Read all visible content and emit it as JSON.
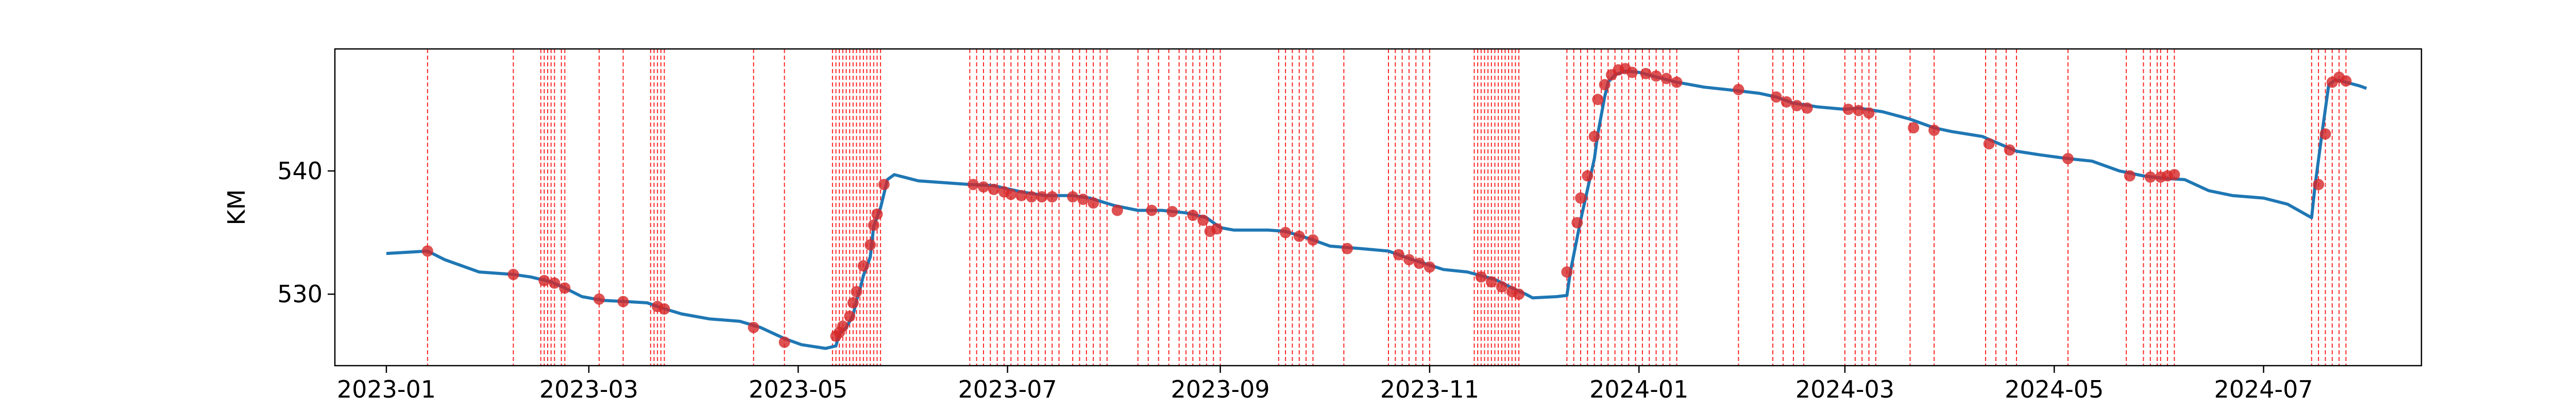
{
  "chart_data": {
    "type": "line",
    "title": "",
    "xlabel": "",
    "ylabel": "KM",
    "x_is_date": true,
    "xlim": [
      "2022-12-17",
      "2024-08-16"
    ],
    "ylim": [
      524.2,
      549.9
    ],
    "x_ticks": [
      "2023-01",
      "2023-03",
      "2023-05",
      "2023-07",
      "2023-09",
      "2023-11",
      "2024-01",
      "2024-03",
      "2024-05",
      "2024-07"
    ],
    "y_ticks": [
      530,
      540
    ],
    "grid": false,
    "legend": "none",
    "colors": {
      "line": "#1f77b4",
      "marker": "#d62728",
      "vline": "#ff0000"
    },
    "series": [
      {
        "type": "line",
        "points": [
          [
            "2023-01-01",
            533.3
          ],
          [
            "2023-01-13",
            533.5
          ],
          [
            "2023-01-18",
            532.8
          ],
          [
            "2023-01-28",
            531.8
          ],
          [
            "2023-02-07",
            531.6
          ],
          [
            "2023-02-12",
            531.4
          ],
          [
            "2023-02-18",
            531.0
          ],
          [
            "2023-02-22",
            530.5
          ],
          [
            "2023-02-27",
            529.8
          ],
          [
            "2023-03-05",
            529.5
          ],
          [
            "2023-03-12",
            529.4
          ],
          [
            "2023-03-18",
            529.3
          ],
          [
            "2023-03-22",
            528.9
          ],
          [
            "2023-03-28",
            528.4
          ],
          [
            "2023-04-05",
            528.0
          ],
          [
            "2023-04-14",
            527.8
          ],
          [
            "2023-04-20",
            527.3
          ],
          [
            "2023-04-27",
            526.4
          ],
          [
            "2023-05-02",
            525.9
          ],
          [
            "2023-05-09",
            525.6
          ],
          [
            "2023-05-12",
            525.8
          ],
          [
            "2023-05-13",
            526.8
          ],
          [
            "2023-05-15",
            527.3
          ],
          [
            "2023-05-17",
            528.3
          ],
          [
            "2023-05-18",
            529.5
          ],
          [
            "2023-05-19",
            530.4
          ],
          [
            "2023-05-20",
            531.5
          ],
          [
            "2023-05-22",
            533.0
          ],
          [
            "2023-05-23",
            535.5
          ],
          [
            "2023-05-25",
            537.0
          ],
          [
            "2023-05-27",
            539.3
          ],
          [
            "2023-05-29",
            539.7
          ],
          [
            "2023-06-05",
            539.2
          ],
          [
            "2023-06-20",
            538.9
          ],
          [
            "2023-06-27",
            538.8
          ],
          [
            "2023-07-05",
            538.3
          ],
          [
            "2023-07-12",
            538.0
          ],
          [
            "2023-07-20",
            538.0
          ],
          [
            "2023-07-25",
            537.8
          ],
          [
            "2023-08-01",
            537.2
          ],
          [
            "2023-08-08",
            536.8
          ],
          [
            "2023-08-15",
            536.8
          ],
          [
            "2023-08-22",
            536.6
          ],
          [
            "2023-08-28",
            536.2
          ],
          [
            "2023-09-01",
            535.4
          ],
          [
            "2023-09-05",
            535.2
          ],
          [
            "2023-09-15",
            535.2
          ],
          [
            "2023-09-20",
            535.1
          ],
          [
            "2023-09-27",
            534.5
          ],
          [
            "2023-10-03",
            533.9
          ],
          [
            "2023-10-12",
            533.7
          ],
          [
            "2023-10-20",
            533.5
          ],
          [
            "2023-10-27",
            532.8
          ],
          [
            "2023-11-05",
            532.0
          ],
          [
            "2023-11-12",
            531.8
          ],
          [
            "2023-11-20",
            531.2
          ],
          [
            "2023-11-25",
            530.5
          ],
          [
            "2023-11-29",
            530.0
          ],
          [
            "2023-12-01",
            529.7
          ],
          [
            "2023-12-08",
            529.8
          ],
          [
            "2023-12-11",
            529.9
          ],
          [
            "2023-12-12",
            531.8
          ],
          [
            "2023-12-15",
            536.0
          ],
          [
            "2023-12-17",
            538.5
          ],
          [
            "2023-12-19",
            541.0
          ],
          [
            "2023-12-20",
            543.0
          ],
          [
            "2023-12-22",
            546.0
          ],
          [
            "2023-12-23",
            547.2
          ],
          [
            "2023-12-25",
            547.8
          ],
          [
            "2023-12-28",
            548.1
          ],
          [
            "2024-01-01",
            548.0
          ],
          [
            "2024-01-05",
            547.7
          ],
          [
            "2024-01-12",
            547.2
          ],
          [
            "2024-01-20",
            546.8
          ],
          [
            "2024-01-30",
            546.5
          ],
          [
            "2024-02-05",
            546.3
          ],
          [
            "2024-02-10",
            546.0
          ],
          [
            "2024-02-15",
            545.5
          ],
          [
            "2024-02-22",
            545.2
          ],
          [
            "2024-03-01",
            545.0
          ],
          [
            "2024-03-05",
            545.1
          ],
          [
            "2024-03-12",
            544.8
          ],
          [
            "2024-03-20",
            544.2
          ],
          [
            "2024-03-27",
            543.5
          ],
          [
            "2024-04-01",
            543.2
          ],
          [
            "2024-04-10",
            542.8
          ],
          [
            "2024-04-15",
            542.2
          ],
          [
            "2024-04-20",
            541.6
          ],
          [
            "2024-04-27",
            541.3
          ],
          [
            "2024-05-05",
            541.0
          ],
          [
            "2024-05-12",
            540.8
          ],
          [
            "2024-05-20",
            540.0
          ],
          [
            "2024-05-27",
            539.6
          ],
          [
            "2024-06-02",
            539.4
          ],
          [
            "2024-06-08",
            539.3
          ],
          [
            "2024-06-15",
            538.4
          ],
          [
            "2024-06-22",
            538.0
          ],
          [
            "2024-07-01",
            537.8
          ],
          [
            "2024-07-08",
            537.3
          ],
          [
            "2024-07-15",
            536.2
          ],
          [
            "2024-07-16",
            538.8
          ],
          [
            "2024-07-18",
            543.0
          ],
          [
            "2024-07-20",
            547.0
          ],
          [
            "2024-07-22",
            547.4
          ],
          [
            "2024-07-25",
            547.2
          ],
          [
            "2024-07-29",
            546.9
          ],
          [
            "2024-07-31",
            546.7
          ]
        ]
      },
      {
        "type": "scatter",
        "points": [
          [
            "2023-01-13",
            533.5
          ],
          [
            "2023-02-07",
            531.6
          ],
          [
            "2023-02-16",
            531.1
          ],
          [
            "2023-02-19",
            530.9
          ],
          [
            "2023-02-22",
            530.5
          ],
          [
            "2023-03-04",
            529.6
          ],
          [
            "2023-03-11",
            529.4
          ],
          [
            "2023-03-21",
            529.0
          ],
          [
            "2023-03-23",
            528.8
          ],
          [
            "2023-04-18",
            527.3
          ],
          [
            "2023-04-27",
            526.1
          ],
          [
            "2023-05-12",
            526.6
          ],
          [
            "2023-05-13",
            526.9
          ],
          [
            "2023-05-14",
            527.4
          ],
          [
            "2023-05-16",
            528.2
          ],
          [
            "2023-05-17",
            529.3
          ],
          [
            "2023-05-18",
            530.2
          ],
          [
            "2023-05-20",
            532.3
          ],
          [
            "2023-05-22",
            534.0
          ],
          [
            "2023-05-23",
            535.6
          ],
          [
            "2023-05-24",
            536.5
          ],
          [
            "2023-05-26",
            538.9
          ],
          [
            "2023-06-21",
            538.9
          ],
          [
            "2023-06-24",
            538.7
          ],
          [
            "2023-06-27",
            538.5
          ],
          [
            "2023-06-30",
            538.3
          ],
          [
            "2023-07-02",
            538.1
          ],
          [
            "2023-07-05",
            538.0
          ],
          [
            "2023-07-08",
            537.9
          ],
          [
            "2023-07-11",
            537.9
          ],
          [
            "2023-07-14",
            537.9
          ],
          [
            "2023-07-20",
            537.9
          ],
          [
            "2023-07-23",
            537.7
          ],
          [
            "2023-07-26",
            537.4
          ],
          [
            "2023-08-02",
            536.8
          ],
          [
            "2023-08-12",
            536.8
          ],
          [
            "2023-08-18",
            536.7
          ],
          [
            "2023-08-24",
            536.4
          ],
          [
            "2023-08-27",
            536.0
          ],
          [
            "2023-08-29",
            535.1
          ],
          [
            "2023-08-31",
            535.3
          ],
          [
            "2023-09-20",
            535.0
          ],
          [
            "2023-09-24",
            534.7
          ],
          [
            "2023-09-28",
            534.4
          ],
          [
            "2023-10-08",
            533.7
          ],
          [
            "2023-10-23",
            533.2
          ],
          [
            "2023-10-26",
            532.8
          ],
          [
            "2023-10-29",
            532.5
          ],
          [
            "2023-11-01",
            532.2
          ],
          [
            "2023-11-16",
            531.4
          ],
          [
            "2023-11-19",
            531.0
          ],
          [
            "2023-11-22",
            530.6
          ],
          [
            "2023-11-25",
            530.2
          ],
          [
            "2023-11-27",
            530.0
          ],
          [
            "2023-12-11",
            531.8
          ],
          [
            "2023-12-14",
            535.8
          ],
          [
            "2023-12-15",
            537.8
          ],
          [
            "2023-12-17",
            539.6
          ],
          [
            "2023-12-19",
            542.8
          ],
          [
            "2023-12-20",
            545.8
          ],
          [
            "2023-12-22",
            547.0
          ],
          [
            "2023-12-24",
            547.8
          ],
          [
            "2023-12-26",
            548.2
          ],
          [
            "2023-12-28",
            548.3
          ],
          [
            "2023-12-30",
            548.0
          ],
          [
            "2024-01-03",
            547.9
          ],
          [
            "2024-01-06",
            547.7
          ],
          [
            "2024-01-09",
            547.5
          ],
          [
            "2024-01-12",
            547.2
          ],
          [
            "2024-01-30",
            546.6
          ],
          [
            "2024-02-10",
            546.0
          ],
          [
            "2024-02-13",
            545.6
          ],
          [
            "2024-02-16",
            545.3
          ],
          [
            "2024-02-19",
            545.1
          ],
          [
            "2024-03-02",
            545.0
          ],
          [
            "2024-03-05",
            544.9
          ],
          [
            "2024-03-08",
            544.7
          ],
          [
            "2024-03-21",
            543.5
          ],
          [
            "2024-03-27",
            543.3
          ],
          [
            "2024-04-12",
            542.2
          ],
          [
            "2024-04-18",
            541.7
          ],
          [
            "2024-05-05",
            541.0
          ],
          [
            "2024-05-23",
            539.6
          ],
          [
            "2024-05-29",
            539.5
          ],
          [
            "2024-06-01",
            539.5
          ],
          [
            "2024-06-03",
            539.6
          ],
          [
            "2024-06-05",
            539.7
          ],
          [
            "2024-07-17",
            538.9
          ],
          [
            "2024-07-19",
            543.0
          ],
          [
            "2024-07-21",
            547.2
          ],
          [
            "2024-07-23",
            547.6
          ],
          [
            "2024-07-25",
            547.3
          ]
        ]
      }
    ],
    "events": [
      "2023-01-13",
      "2023-02-07",
      "2023-02-15",
      "2023-02-16",
      "2023-02-17",
      "2023-02-18",
      "2023-02-19",
      "2023-02-21",
      "2023-02-22",
      "2023-03-04",
      "2023-03-11",
      "2023-03-19",
      "2023-03-20",
      "2023-03-21",
      "2023-03-22",
      "2023-03-23",
      "2023-04-18",
      "2023-04-27",
      "2023-05-11",
      "2023-05-12",
      "2023-05-13",
      "2023-05-14",
      "2023-05-15",
      "2023-05-16",
      "2023-05-17",
      "2023-05-18",
      "2023-05-19",
      "2023-05-20",
      "2023-05-21",
      "2023-05-22",
      "2023-05-23",
      "2023-05-24",
      "2023-05-25",
      "2023-06-20",
      "2023-06-22",
      "2023-06-24",
      "2023-06-26",
      "2023-06-28",
      "2023-06-30",
      "2023-07-02",
      "2023-07-04",
      "2023-07-06",
      "2023-07-08",
      "2023-07-10",
      "2023-07-12",
      "2023-07-14",
      "2023-07-16",
      "2023-07-20",
      "2023-07-22",
      "2023-07-24",
      "2023-07-26",
      "2023-07-28",
      "2023-07-30",
      "2023-08-08",
      "2023-08-11",
      "2023-08-14",
      "2023-08-17",
      "2023-08-20",
      "2023-08-22",
      "2023-08-24",
      "2023-08-26",
      "2023-08-28",
      "2023-08-30",
      "2023-09-01",
      "2023-09-18",
      "2023-09-20",
      "2023-09-22",
      "2023-09-24",
      "2023-09-26",
      "2023-09-28",
      "2023-10-07",
      "2023-10-20",
      "2023-10-22",
      "2023-10-24",
      "2023-10-26",
      "2023-10-28",
      "2023-10-30",
      "2023-11-01",
      "2023-11-14",
      "2023-11-15",
      "2023-11-16",
      "2023-11-17",
      "2023-11-18",
      "2023-11-19",
      "2023-11-20",
      "2023-11-21",
      "2023-11-22",
      "2023-11-23",
      "2023-11-24",
      "2023-11-25",
      "2023-11-26",
      "2023-11-27",
      "2023-12-11",
      "2023-12-13",
      "2023-12-15",
      "2023-12-17",
      "2023-12-19",
      "2023-12-21",
      "2023-12-23",
      "2023-12-25",
      "2023-12-27",
      "2023-12-29",
      "2023-12-31",
      "2024-01-02",
      "2024-01-04",
      "2024-01-06",
      "2024-01-08",
      "2024-01-10",
      "2024-01-12",
      "2024-01-30",
      "2024-02-09",
      "2024-02-12",
      "2024-02-15",
      "2024-02-18",
      "2024-03-01",
      "2024-03-04",
      "2024-03-06",
      "2024-03-08",
      "2024-03-10",
      "2024-03-20",
      "2024-03-27",
      "2024-04-11",
      "2024-04-14",
      "2024-04-17",
      "2024-04-20",
      "2024-05-05",
      "2024-05-22",
      "2024-05-27",
      "2024-05-29",
      "2024-05-31",
      "2024-06-01",
      "2024-06-03",
      "2024-06-05",
      "2024-07-15",
      "2024-07-17",
      "2024-07-19",
      "2024-07-21",
      "2024-07-23",
      "2024-07-25"
    ]
  }
}
